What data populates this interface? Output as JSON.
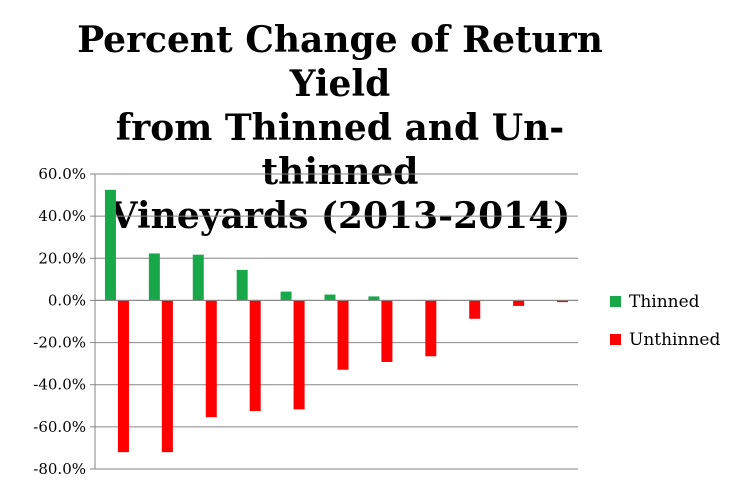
{
  "chart_data": {
    "type": "bar",
    "title_lines": [
      "Percent Change of Return Yield",
      "from Thinned and Un-thinned",
      "Vineyards (2013-2014)"
    ],
    "xlabel": "",
    "ylabel": "",
    "ylim": [
      -80,
      60
    ],
    "yticks": [
      60,
      40,
      20,
      0,
      -20,
      -40,
      -60,
      -80
    ],
    "ytick_labels": [
      "60.0%",
      "40.0%",
      "20.0%",
      "0.0%",
      "-20.0%",
      "-40.0%",
      "-60.0%",
      "-80.0%"
    ],
    "grid": true,
    "legend_position": "right",
    "categories": [
      "",
      "",
      "",
      "",
      "",
      "",
      "",
      "",
      "",
      "",
      ""
    ],
    "series": [
      {
        "name": "Thinned",
        "color": "#18a84a",
        "values": [
          52.5,
          22.3,
          21.7,
          14.5,
          4.2,
          2.8,
          1.9,
          0,
          0,
          0,
          0
        ]
      },
      {
        "name": "Unthinned",
        "color": "#ff0000",
        "values": [
          -72.0,
          -72.0,
          -55.4,
          -52.5,
          -51.7,
          -32.9,
          -29.2,
          -26.5,
          -8.7,
          -2.6,
          -0.8
        ]
      }
    ]
  }
}
